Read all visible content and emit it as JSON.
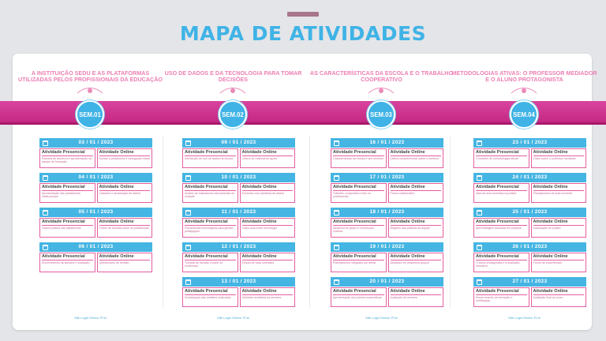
{
  "title": "MAPA DE ATIVIDADES",
  "presencial_label": "Atividade Presencial",
  "online_label": "Atividade Online",
  "columns": [
    {
      "title": "A INSTITUIÇÃO SEDU E AS PLATAFORMAS UTILIZADAS PELOS PROFISSIONAIS DA EDUCAÇÃO",
      "badge": "SEM.01",
      "footer": "Site Login Senha: Pl te",
      "days": [
        {
          "date": "03  /  01  /  2023",
          "presencial": "Palestra de abertura e apresentação da equipe de formação",
          "online": "Acesso à plataforma e navegação inicial"
        },
        {
          "date": "04  /  01  /  2023",
          "presencial": "Apresentação das plataformas institucionais",
          "online": "Cadastro e atualização de dados"
        },
        {
          "date": "05  /  01  /  2023",
          "presencial": "Oficina prática nas plataformas",
          "online": "Fórum de dúvidas sobre as plataformas"
        },
        {
          "date": "06  /  01  /  2023",
          "presencial": "Encerramento da semana e avaliação",
          "online": "Questionário de revisão"
        }
      ]
    },
    {
      "title": "USO DE DADOS E DA TECNOLOGIA PARA TOMAR DECISÕES",
      "badge": "SEM.02",
      "footer": "Site Login Senha: Pl te",
      "days": [
        {
          "date": "09  /  01  /  2023",
          "presencial": "Introdução ao uso de dados na escola",
          "online": "Leitura de material de apoio"
        },
        {
          "date": "10  /  01  /  2023",
          "presencial": "Análise de indicadores educacionais da unidade",
          "online": "Exercício com planilhas de dados"
        },
        {
          "date": "11  /  01  /  2023",
          "presencial": "Ferramentas tecnológicas para gestão pedagógica",
          "online": "Vídeo aula sobre tecnologia"
        },
        {
          "date": "12  /  01  /  2023",
          "presencial": "Tomada de decisão a partir de evidências",
          "online": "Estudo de caso orientado"
        },
        {
          "date": "13  /  01  /  2023",
          "presencial": "Socialização das análises realizadas",
          "online": "Atividade avaliativa da semana"
        }
      ]
    },
    {
      "title": "AS CARACTERÍSTICAS DA ESCOLA E O TRABALHO COOPERATIVO",
      "badge": "SEM.03",
      "footer": "Site Login Senha: Pl te",
      "days": [
        {
          "date": "16  /  01  /  2023",
          "presencial": "Características da escola e seu território",
          "online": "Leitura complementar sobre o território"
        },
        {
          "date": "17  /  01  /  2023",
          "presencial": "Trabalho cooperativo entre os profissionais",
          "online": "Fórum colaborativo"
        },
        {
          "date": "18  /  01  /  2023",
          "presencial": "Dinâmica de grupo e construção coletiva",
          "online": "Registro das práticas da equipe"
        },
        {
          "date": "19  /  01  /  2023",
          "presencial": "Planejamento integrado por áreas",
          "online": "Atividade em pequenos grupos"
        },
        {
          "date": "20  /  01  /  2023",
          "presencial": "Apresentação dos planos cooperativos",
          "online": "Avaliação da semana"
        }
      ]
    },
    {
      "title": "METODOLOGIAS ATIVAS: O PROFESSOR MEDIADOR E O ALUNO PROTAGONISTA",
      "badge": "SEM.04",
      "footer": "Site Login Senha: Pl te",
      "days": [
        {
          "date": "23  /  01  /  2023",
          "presencial": "Conceitos de metodologias ativas",
          "online": "Vídeo sobre o professor mediador"
        },
        {
          "date": "24  /  01  /  2023",
          "presencial": "Sala de aula invertida na prática",
          "online": "Planejamento de aula invertida"
        },
        {
          "date": "25  /  01  /  2023",
          "presencial": "Aprendizagem baseada em projetos",
          "online": "Elaboração de projeto"
        },
        {
          "date": "26  /  01  /  2023",
          "presencial": "O aluno protagonista e a avaliação formativa",
          "online": "Fórum de experiências"
        },
        {
          "date": "27  /  01  /  2023",
          "presencial": "Encerramento da formação e certificação",
          "online": "Avaliação final do curso"
        }
      ]
    }
  ]
}
